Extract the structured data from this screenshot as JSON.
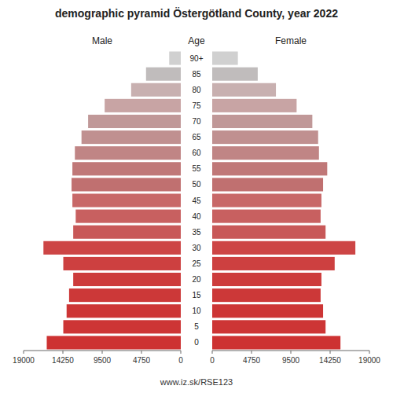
{
  "chart_data": {
    "type": "bar",
    "orientation": "horizontal",
    "title": "demographic pyramid Östergötland County, year 2022",
    "ylabel": "Age",
    "categories": [
      "0",
      "5",
      "10",
      "15",
      "20",
      "25",
      "30",
      "35",
      "40",
      "45",
      "50",
      "55",
      "60",
      "65",
      "70",
      "75",
      "80",
      "85",
      "90+"
    ],
    "series": [
      {
        "name": "Male",
        "values": [
          16200,
          14200,
          13800,
          13500,
          13000,
          14200,
          16600,
          13000,
          12700,
          13100,
          13200,
          13100,
          12800,
          12000,
          11200,
          9200,
          6000,
          4200,
          1400
        ],
        "colors": [
          "#cd3232",
          "#cd3535",
          "#cd3535",
          "#cc3838",
          "#cd3c3c",
          "#cd4040",
          "#cd4545",
          "#c85858",
          "#c86060",
          "#c86868",
          "#c07070",
          "#c07878",
          "#c08585",
          "#c09090",
          "#c09898",
          "#c8a4a4",
          "#c8b0b0",
          "#c0bcbc",
          "#d0d0d0"
        ]
      },
      {
        "name": "Female",
        "values": [
          15500,
          13700,
          13400,
          13100,
          13200,
          14800,
          17300,
          13700,
          13100,
          13200,
          13400,
          13900,
          12900,
          12800,
          12100,
          10200,
          7700,
          5500,
          3100
        ],
        "colors": [
          "#cd3232",
          "#cd3535",
          "#cd3535",
          "#cc3838",
          "#cd3c3c",
          "#cd4040",
          "#cd4545",
          "#c85858",
          "#c86060",
          "#c86868",
          "#c07070",
          "#c07878",
          "#c08585",
          "#c09090",
          "#c09898",
          "#c8a4a4",
          "#c8b0b0",
          "#c0bcbc",
          "#d0d0d0"
        ]
      }
    ],
    "xlim": [
      0,
      19000
    ],
    "xticks": [
      0,
      4750,
      9500,
      14250,
      19000
    ],
    "grid": false,
    "annotations": [
      "www.iz.sk/RSE123"
    ]
  }
}
